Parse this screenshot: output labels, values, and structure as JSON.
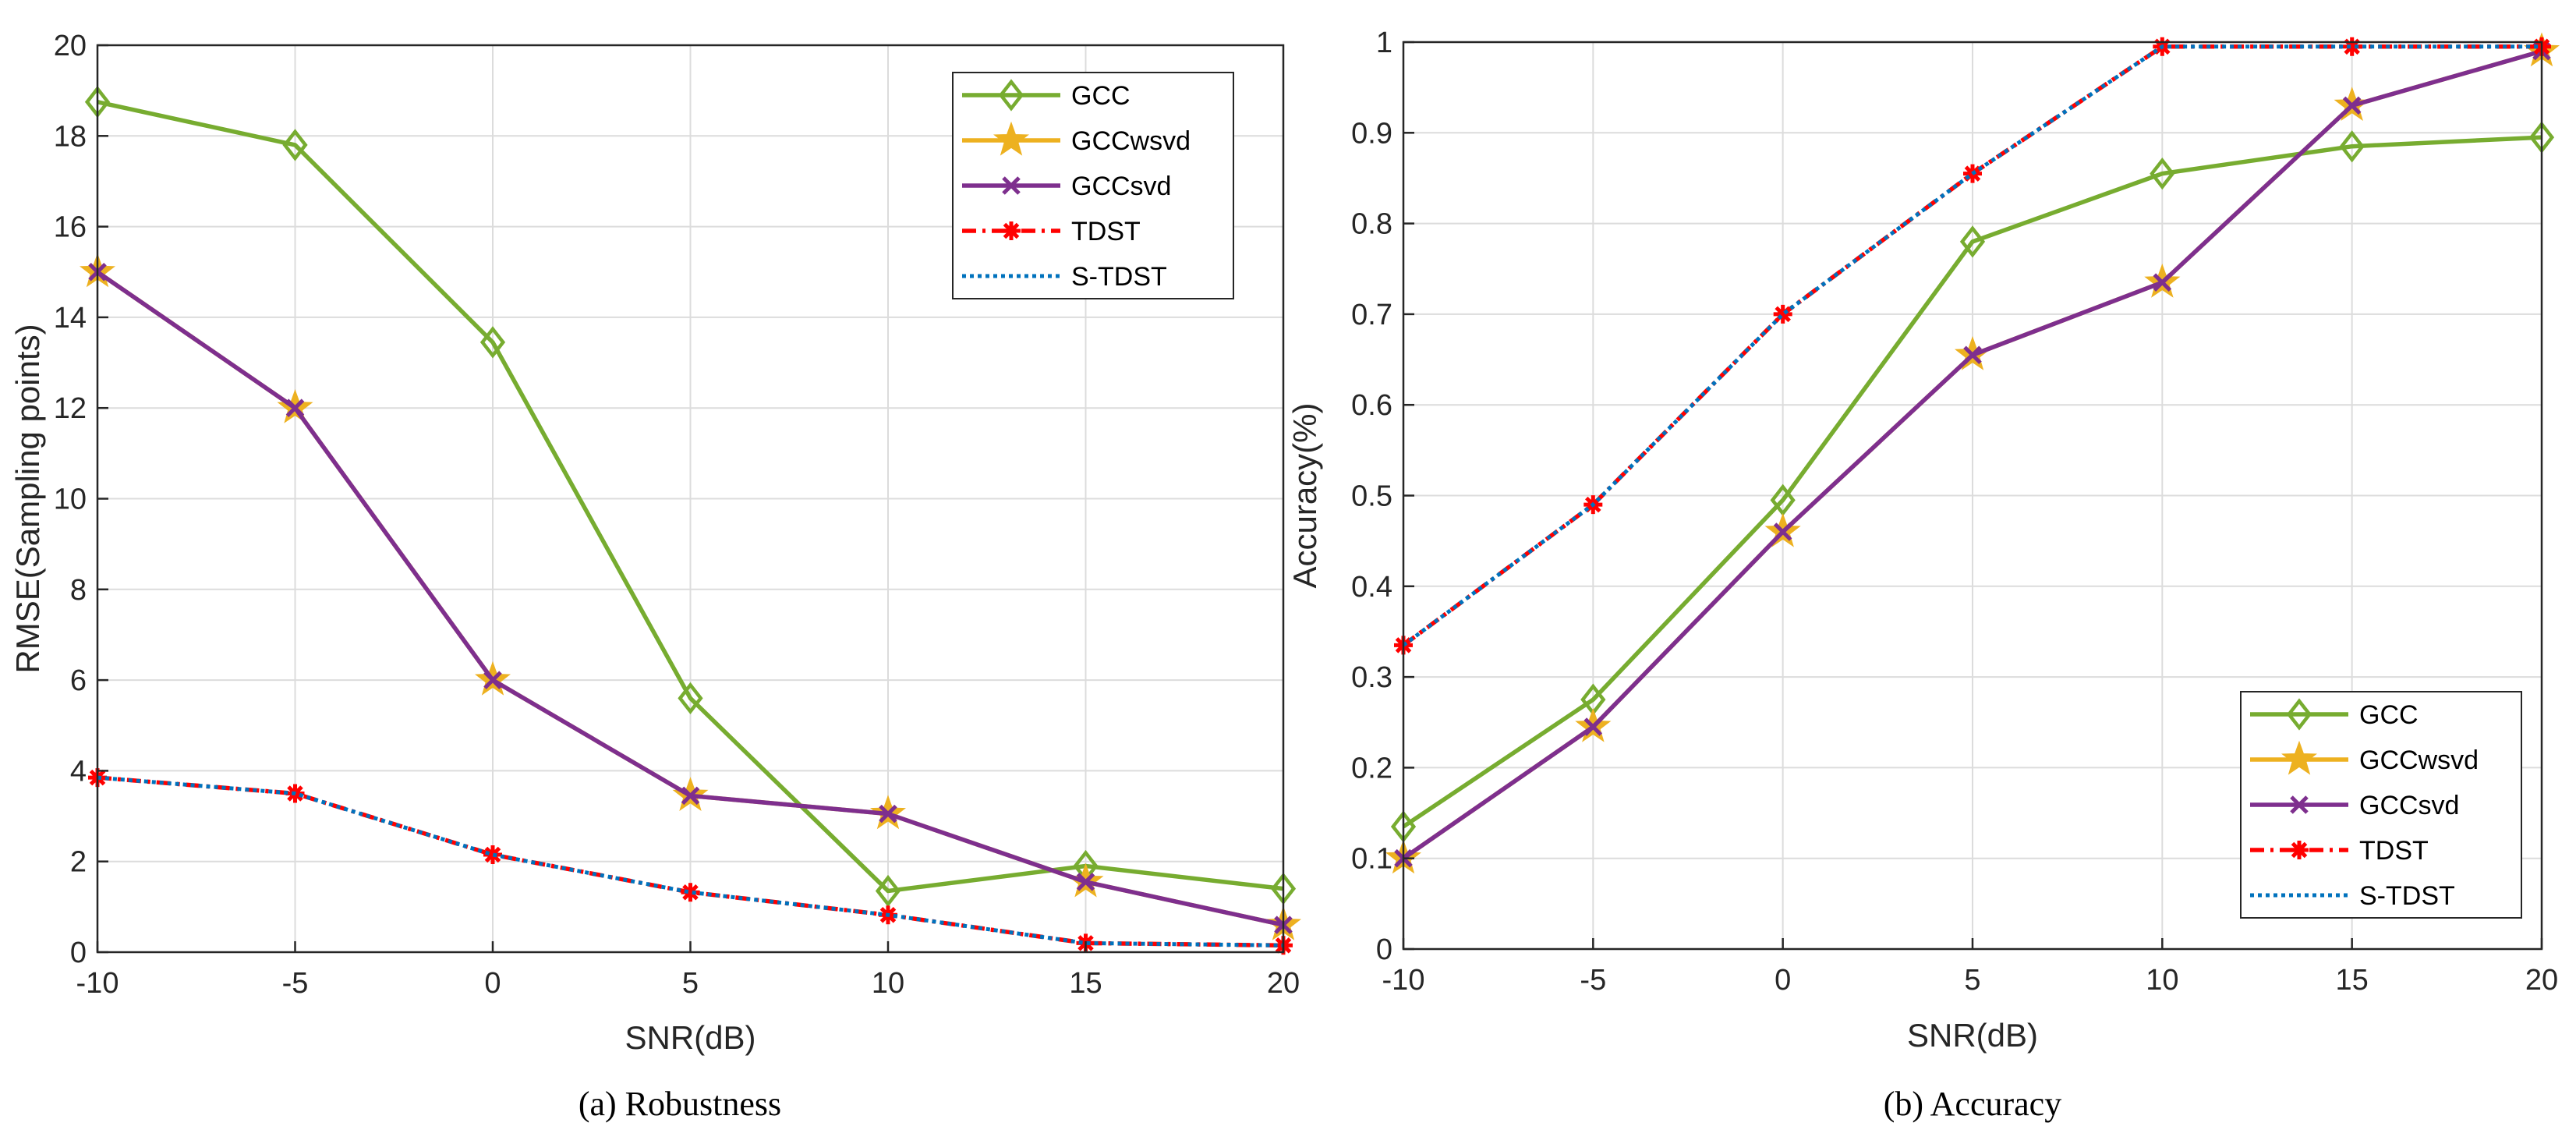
{
  "colors": {
    "GCC": "#77AC30",
    "GCCwsvd": "#EDB120",
    "GCCsvd": "#7E2F8E",
    "TDST": "#FF0000",
    "S-TDST": "#0072BD"
  },
  "chart_data": [
    {
      "type": "line",
      "title": "(a) Robustness",
      "xlabel": "SNR(dB)",
      "ylabel": "RMSE(Sampling points)",
      "xlim": [
        -10,
        20
      ],
      "ylim": [
        0,
        20
      ],
      "x_ticks": [
        "-10",
        "-5",
        "0",
        "5",
        "10",
        "15",
        "20"
      ],
      "y_ticks": [
        "0",
        "2",
        "4",
        "6",
        "8",
        "10",
        "12",
        "14",
        "16",
        "18",
        "20"
      ],
      "grid": true,
      "legend_position": "top-right",
      "x": [
        -10,
        -5,
        0,
        5,
        10,
        15,
        20
      ],
      "series": [
        {
          "name": "GCC",
          "values": [
            18.75,
            17.8,
            13.45,
            5.6,
            1.35,
            1.9,
            1.4
          ]
        },
        {
          "name": "GCCwsvd",
          "values": [
            15.0,
            12.0,
            6.0,
            3.45,
            3.05,
            1.55,
            0.6
          ]
        },
        {
          "name": "GCCsvd",
          "values": [
            15.0,
            12.0,
            6.0,
            3.45,
            3.05,
            1.55,
            0.6
          ]
        },
        {
          "name": "TDST",
          "values": [
            3.85,
            3.5,
            2.15,
            1.32,
            0.82,
            0.2,
            0.15
          ]
        },
        {
          "name": "S-TDST",
          "values": [
            3.85,
            3.5,
            2.15,
            1.32,
            0.82,
            0.2,
            0.15
          ]
        }
      ]
    },
    {
      "type": "line",
      "title": "(b) Accuracy",
      "xlabel": "SNR(dB)",
      "ylabel": "Accuracy(%)",
      "xlim": [
        -10,
        20
      ],
      "ylim": [
        0,
        1
      ],
      "x_ticks": [
        "-10",
        "-5",
        "0",
        "5",
        "10",
        "15",
        "20"
      ],
      "y_ticks": [
        "0",
        "0.1",
        "0.2",
        "0.3",
        "0.4",
        "0.5",
        "0.6",
        "0.7",
        "0.8",
        "0.9",
        "1"
      ],
      "grid": true,
      "legend_position": "bottom-right",
      "x": [
        -10,
        -5,
        0,
        5,
        10,
        15,
        20
      ],
      "series": [
        {
          "name": "GCC",
          "values": [
            0.135,
            0.275,
            0.495,
            0.78,
            0.855,
            0.885,
            0.895
          ]
        },
        {
          "name": "GCCwsvd",
          "values": [
            0.1,
            0.245,
            0.46,
            0.655,
            0.735,
            0.93,
            0.99
          ]
        },
        {
          "name": "GCCsvd",
          "values": [
            0.1,
            0.245,
            0.46,
            0.655,
            0.735,
            0.93,
            0.99
          ]
        },
        {
          "name": "TDST",
          "values": [
            0.335,
            0.49,
            0.7,
            0.855,
            0.995,
            0.995,
            0.995
          ]
        },
        {
          "name": "S-TDST",
          "values": [
            0.335,
            0.49,
            0.7,
            0.855,
            0.995,
            0.995,
            0.995
          ]
        }
      ]
    }
  ]
}
